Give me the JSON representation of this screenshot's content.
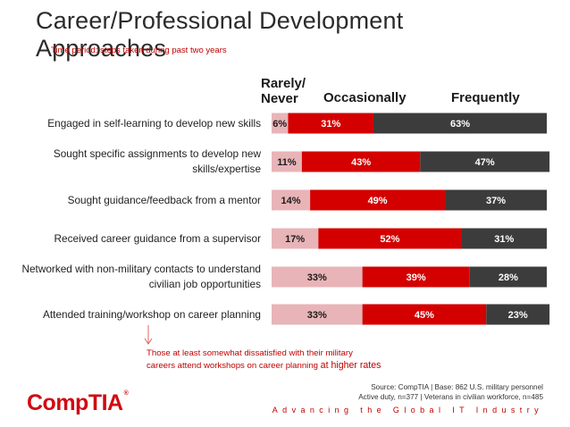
{
  "title": "Career/Professional Development Approaches",
  "subtitle": "Time period: steps taken during past two years",
  "chart_data": {
    "type": "bar",
    "orientation": "horizontal",
    "stacked": true,
    "categories": [
      [
        "Engaged in self-learning to develop new skills"
      ],
      [
        "Sought specific assignments to develop new",
        "skills/expertise"
      ],
      [
        "Sought guidance/feedback from a mentor"
      ],
      [
        "Received career guidance from a supervisor"
      ],
      [
        "Networked with non-military contacts to understand",
        "civilian job opportunities"
      ],
      [
        "Attended training/workshop on career planning"
      ]
    ],
    "series": [
      {
        "name": "Rarely/ Never",
        "name_lines": [
          "Rarely/",
          "Never"
        ],
        "color": "#e8b4b8",
        "values": [
          6,
          11,
          14,
          17,
          33,
          33
        ]
      },
      {
        "name": "Occasionally",
        "color": "#d40000",
        "values": [
          31,
          43,
          49,
          52,
          39,
          45
        ]
      },
      {
        "name": "Frequently",
        "color": "#3c3c3c",
        "values": [
          63,
          47,
          37,
          31,
          28,
          23
        ]
      }
    ],
    "value_suffix": "%",
    "xlim": [
      0,
      100
    ],
    "legend": "top, as column headers"
  },
  "footnote": {
    "line1": "Those at least somewhat dissatisfied with their military",
    "line2": "careers attend workshops on career planning",
    "emphasis": "at higher rates"
  },
  "logo_text": "CompTIA",
  "source": {
    "line1": "Source: CompTIA | Base: 862 U.S. military personnel",
    "line2": "Active duty, n=377 | Veterans in civilian workforce, n=485"
  },
  "tagline": "Advancing the Global IT Industry"
}
